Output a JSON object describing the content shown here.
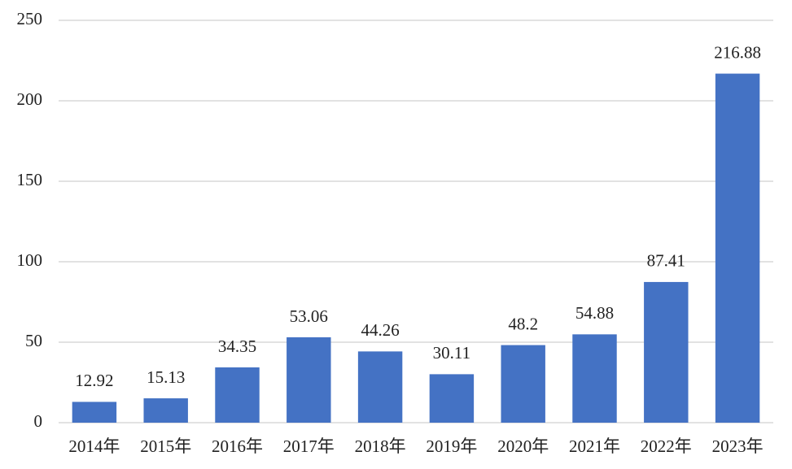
{
  "chart_data": {
    "type": "bar",
    "categories": [
      "2014年",
      "2015年",
      "2016年",
      "2017年",
      "2018年",
      "2019年",
      "2020年",
      "2021年",
      "2022年",
      "2023年"
    ],
    "values": [
      12.92,
      15.13,
      34.35,
      53.06,
      44.26,
      30.11,
      48.2,
      54.88,
      87.41,
      216.88
    ],
    "color": "#4472c4",
    "ylim": [
      0,
      250
    ],
    "yticks": [
      0,
      50,
      100,
      150,
      200,
      250
    ],
    "grid": true
  }
}
